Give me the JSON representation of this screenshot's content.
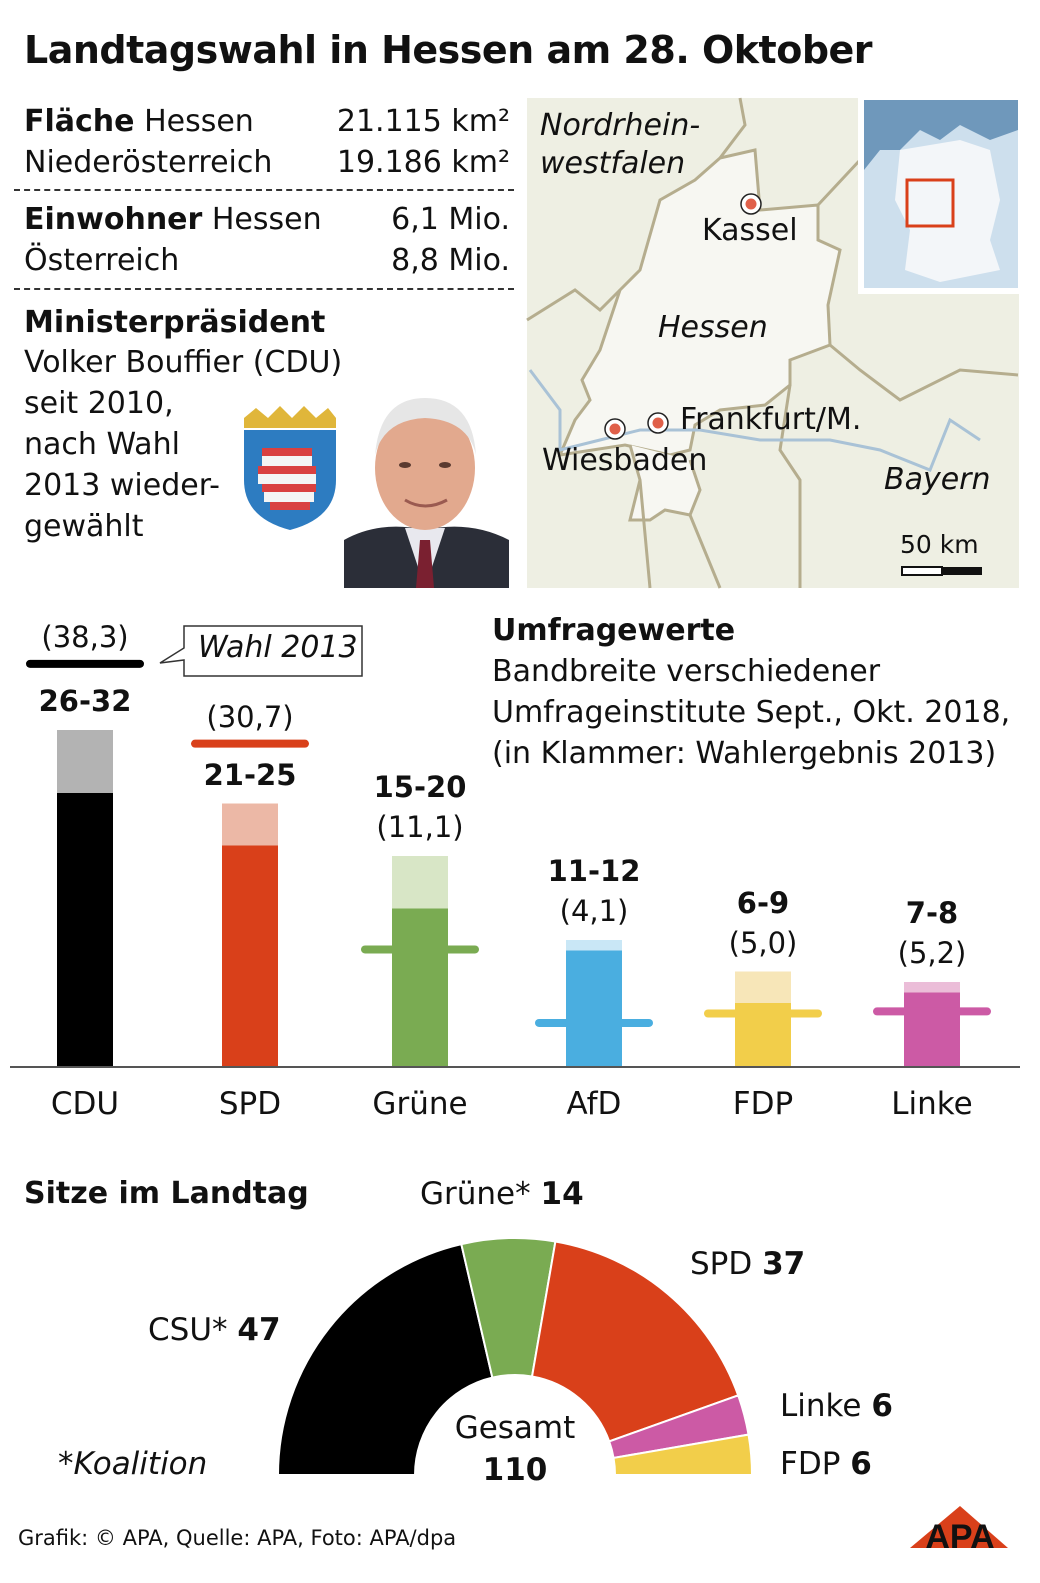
{
  "title": "Landtagswahl in Hessen am 28. Oktober",
  "facts": {
    "area_label": "Fläche",
    "area_hessen_name": "Hessen",
    "area_hessen": "21.115 km²",
    "area_noe_name": "Niederösterreich",
    "area_noe": "19.186 km²",
    "pop_label": "Einwohner",
    "pop_hessen_name": "Hessen",
    "pop_hessen": "6,1 Mio.",
    "pop_at_name": "Österreich",
    "pop_at": "8,8 Mio."
  },
  "ministerpraesident": {
    "label": "Ministerpräsident",
    "lines": [
      "Volker Bouffier (CDU)",
      "seit 2010,",
      "nach Wahl",
      "2013 wieder-",
      "gewählt"
    ]
  },
  "map": {
    "labels": {
      "nrw1": "Nordrhein-",
      "nrw2": "westfalen",
      "kassel": "Kassel",
      "hessen": "Hessen",
      "frankfurt": "Frankfurt/M.",
      "wiesbaden": "Wiesbaden",
      "bayern": "Bayern"
    },
    "scale": "50 km",
    "colors": {
      "land": "#eeefe3",
      "hessen": "#f7f7f2",
      "border": "#b5ad8e",
      "city": "#e0604a",
      "water": "#6f98bb"
    }
  },
  "chart_data": [
    {
      "type": "bar",
      "title": "Umfragewerte",
      "subtitle": [
        "Bandbreite verschiedener",
        "Umfrageinstitute Sept., Okt. 2018,",
        "(in Klammer: Wahlergebnis 2013)"
      ],
      "legend_callout": "Wahl 2013",
      "categories": [
        "CDU",
        "SPD",
        "Grüne",
        "AfD",
        "FDP",
        "Linke"
      ],
      "series": [
        {
          "name": "Umfragewerte",
          "low": [
            26,
            21,
            15,
            11,
            6,
            7
          ],
          "high": [
            32,
            25,
            20,
            12,
            9,
            8
          ],
          "range_labels": [
            "26-32",
            "21-25",
            "15-20",
            "11-12",
            "6-9",
            "7-8"
          ]
        },
        {
          "name": "Wahl 2013",
          "values": [
            38.3,
            30.7,
            11.1,
            4.1,
            5.0,
            5.2
          ],
          "value_labels": [
            "(38,3)",
            "(30,7)",
            "(11,1)",
            "(4,1)",
            "(5,0)",
            "(5,2)"
          ]
        }
      ],
      "colors": [
        "#000000",
        "#d9401a",
        "#7aab52",
        "#4aaee0",
        "#f2ce4a",
        "#cc5aa5"
      ],
      "light_colors": [
        "#b3b3b3",
        "#ecb8a6",
        "#d8e6c6",
        "#c9e7f6",
        "#f7e6b8",
        "#ebbdd8"
      ],
      "ylim": [
        0,
        40
      ]
    },
    {
      "type": "pie",
      "title": "Sitze im Landtag",
      "shape": "half-donut",
      "categories": [
        "CSU*",
        "Grüne*",
        "SPD",
        "Linke",
        "FDP"
      ],
      "values": [
        47,
        14,
        37,
        6,
        6
      ],
      "colors": [
        "#000000",
        "#7aab52",
        "#d9401a",
        "#cc5aa5",
        "#f2ce4a"
      ],
      "center_label": "Gesamt",
      "center_value": "110",
      "note": "*Koalition"
    }
  ],
  "footer": {
    "credit": "Grafik: © APA, Quelle: APA, Foto: APA/dpa",
    "logo": "APA"
  }
}
